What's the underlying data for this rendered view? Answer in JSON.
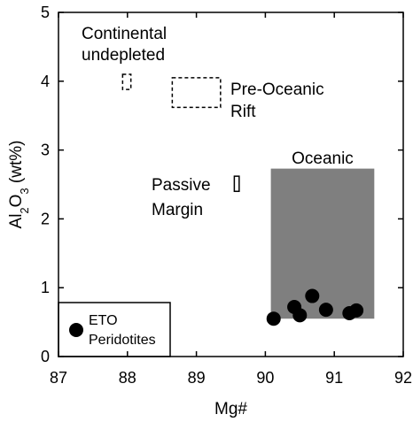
{
  "chart_data": {
    "type": "scatter",
    "xlabel": "Mg#",
    "ylabel": {
      "parts": [
        {
          "text": "Al",
          "sub": false
        },
        {
          "text": "2",
          "sub": true
        },
        {
          "text": "O",
          "sub": false
        },
        {
          "text": "3",
          "sub": true
        },
        {
          "text": " (wt%)",
          "sub": false
        }
      ]
    },
    "xlim": [
      87,
      92
    ],
    "ylim": [
      0,
      5
    ],
    "xticks": [
      "87",
      "88",
      "89",
      "90",
      "91",
      "92"
    ],
    "yticks": [
      "0",
      "1",
      "2",
      "3",
      "4",
      "5"
    ],
    "grid": false,
    "fields": [
      {
        "id": "continental-undepleted",
        "label_lines": [
          "Continental",
          "undepleted"
        ],
        "x": [
          87.93,
          88.05
        ],
        "y": [
          3.88,
          4.1
        ],
        "style": "dashed"
      },
      {
        "id": "pre-oceanic-rift",
        "label_lines": [
          "Pre-Oceanic",
          "Rift"
        ],
        "x": [
          88.65,
          89.35
        ],
        "y": [
          3.62,
          4.05
        ],
        "style": "dashed"
      },
      {
        "id": "passive-margin",
        "label_lines": [
          "Passive",
          "Margin"
        ],
        "x": [
          89.55,
          89.62
        ],
        "y": [
          2.4,
          2.62
        ],
        "style": "solid"
      },
      {
        "id": "oceanic",
        "label_lines": [
          "Oceanic"
        ],
        "x": [
          90.08,
          91.58
        ],
        "y": [
          0.55,
          2.73
        ],
        "style": "filled",
        "color": "#7f7f7f"
      }
    ],
    "series": [
      {
        "name": "ETO Peridotites",
        "marker": "circle",
        "color": "#000000",
        "points": [
          {
            "x": 90.12,
            "y": 0.55
          },
          {
            "x": 90.42,
            "y": 0.72
          },
          {
            "x": 90.5,
            "y": 0.6
          },
          {
            "x": 90.68,
            "y": 0.88
          },
          {
            "x": 90.88,
            "y": 0.68
          },
          {
            "x": 91.22,
            "y": 0.63
          },
          {
            "x": 91.32,
            "y": 0.67
          }
        ]
      }
    ],
    "legend": {
      "placement": "bottom-left",
      "label_lines": [
        "ETO",
        "Peridotites"
      ]
    }
  }
}
